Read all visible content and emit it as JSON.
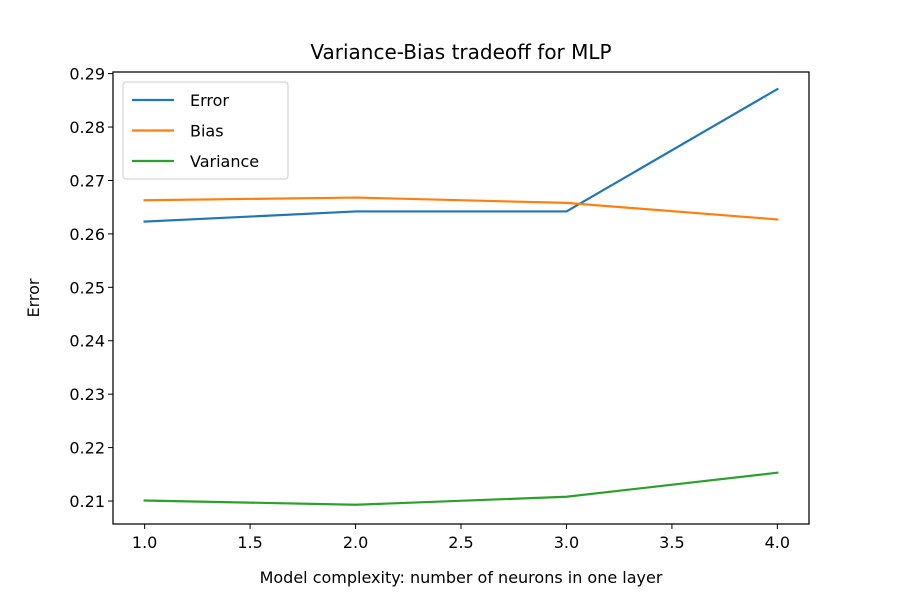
{
  "chart_data": {
    "type": "line",
    "title": "Variance-Bias tradeoff for MLP",
    "xlabel": "Model complexity: number of neurons in one layer",
    "ylabel": "Error",
    "x": [
      1,
      2,
      3,
      4
    ],
    "xlim": [
      0.85,
      4.15
    ],
    "ylim": [
      0.2057,
      0.2903
    ],
    "xticks": [
      "1.0",
      "1.5",
      "2.0",
      "2.5",
      "3.0",
      "3.5",
      "4.0"
    ],
    "yticks": [
      "0.21",
      "0.22",
      "0.23",
      "0.24",
      "0.25",
      "0.26",
      "0.27",
      "0.28",
      "0.29"
    ],
    "grid": false,
    "legend_position": "upper-left",
    "series": [
      {
        "name": "Error",
        "color": "#1f77b4",
        "values": [
          0.2623,
          0.2642,
          0.2642,
          0.2871
        ]
      },
      {
        "name": "Bias",
        "color": "#ff7f0e",
        "values": [
          0.2663,
          0.2668,
          0.2658,
          0.2627
        ]
      },
      {
        "name": "Variance",
        "color": "#2ca02c",
        "values": [
          0.2101,
          0.2093,
          0.2108,
          0.2153
        ]
      }
    ]
  }
}
